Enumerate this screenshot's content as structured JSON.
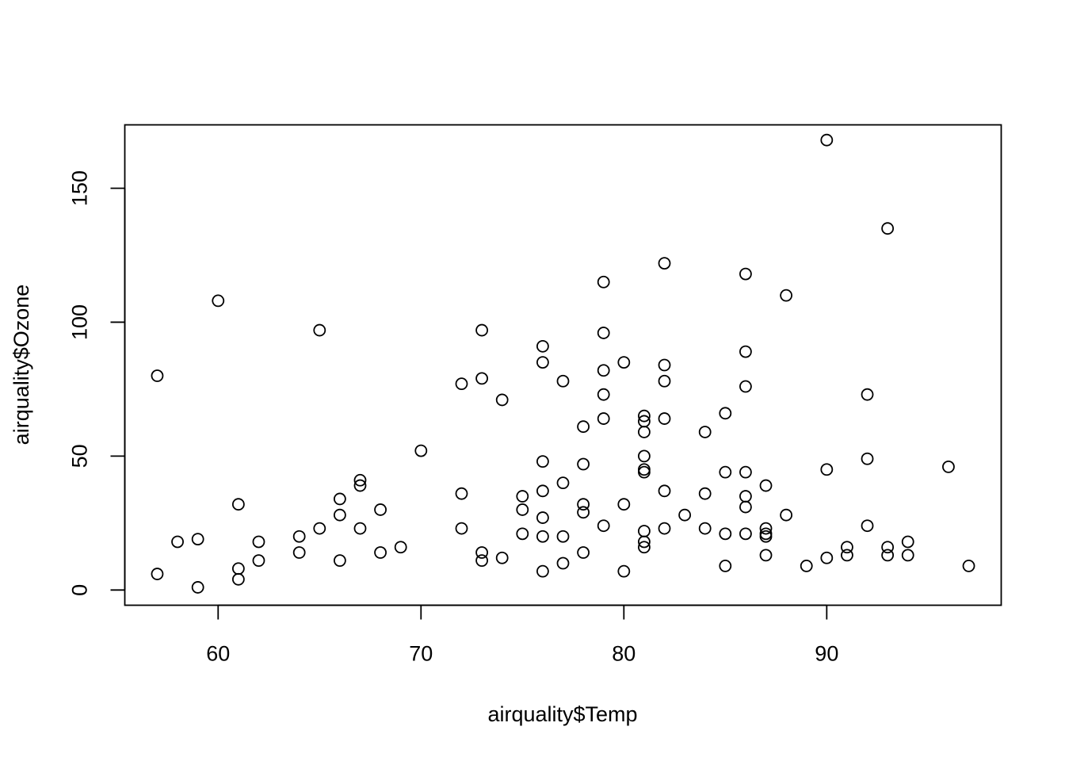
{
  "chart_data": {
    "type": "scatter",
    "title": "",
    "xlabel": "airquality$Temp",
    "ylabel": "airquality$Ozone",
    "xlim": [
      55.4,
      98.6
    ],
    "ylim": [
      -5.68,
      173.68
    ],
    "x_ticks": [
      60,
      70,
      80,
      90
    ],
    "y_ticks": [
      0,
      50,
      100,
      150
    ],
    "grid": false,
    "marker": "open-circle",
    "points": [
      [
        67,
        41
      ],
      [
        72,
        36
      ],
      [
        74,
        12
      ],
      [
        62,
        18
      ],
      [
        66,
        28
      ],
      [
        65,
        23
      ],
      [
        59,
        19
      ],
      [
        61,
        8
      ],
      [
        69,
        16
      ],
      [
        66,
        11
      ],
      [
        68,
        14
      ],
      [
        58,
        18
      ],
      [
        64,
        14
      ],
      [
        66,
        34
      ],
      [
        57,
        6
      ],
      [
        68,
        30
      ],
      [
        62,
        11
      ],
      [
        59,
        1
      ],
      [
        73,
        11
      ],
      [
        61,
        4
      ],
      [
        61,
        32
      ],
      [
        67,
        23
      ],
      [
        81,
        45
      ],
      [
        79,
        115
      ],
      [
        76,
        37
      ],
      [
        78,
        29
      ],
      [
        74,
        71
      ],
      [
        67,
        39
      ],
      [
        84,
        23
      ],
      [
        85,
        21
      ],
      [
        82,
        37
      ],
      [
        87,
        20
      ],
      [
        90,
        12
      ],
      [
        87,
        13
      ],
      [
        93,
        135
      ],
      [
        92,
        49
      ],
      [
        80,
        32
      ],
      [
        79,
        64
      ],
      [
        77,
        40
      ],
      [
        72,
        77
      ],
      [
        65,
        97
      ],
      [
        73,
        97
      ],
      [
        76,
        85
      ],
      [
        77,
        10
      ],
      [
        76,
        27
      ],
      [
        76,
        7
      ],
      [
        76,
        48
      ],
      [
        75,
        35
      ],
      [
        78,
        61
      ],
      [
        73,
        79
      ],
      [
        81,
        63
      ],
      [
        91,
        16
      ],
      [
        57,
        80
      ],
      [
        60,
        108
      ],
      [
        64,
        20
      ],
      [
        70,
        52
      ],
      [
        79,
        82
      ],
      [
        81,
        50
      ],
      [
        82,
        64
      ],
      [
        84,
        59
      ],
      [
        87,
        39
      ],
      [
        85,
        9
      ],
      [
        81,
        16
      ],
      [
        82,
        78
      ],
      [
        86,
        35
      ],
      [
        85,
        66
      ],
      [
        82,
        122
      ],
      [
        86,
        89
      ],
      [
        88,
        110
      ],
      [
        86,
        44
      ],
      [
        83,
        28
      ],
      [
        81,
        65
      ],
      [
        81,
        22
      ],
      [
        81,
        59
      ],
      [
        82,
        23
      ],
      [
        86,
        31
      ],
      [
        85,
        44
      ],
      [
        87,
        21
      ],
      [
        89,
        9
      ],
      [
        90,
        45
      ],
      [
        90,
        168
      ],
      [
        92,
        73
      ],
      [
        86,
        76
      ],
      [
        86,
        118
      ],
      [
        82,
        84
      ],
      [
        80,
        85
      ],
      [
        79,
        96
      ],
      [
        77,
        78
      ],
      [
        79,
        73
      ],
      [
        76,
        91
      ],
      [
        78,
        47
      ],
      [
        78,
        32
      ],
      [
        77,
        20
      ],
      [
        72,
        23
      ],
      [
        75,
        21
      ],
      [
        79,
        24
      ],
      [
        81,
        44
      ],
      [
        86,
        21
      ],
      [
        88,
        28
      ],
      [
        97,
        9
      ],
      [
        94,
        13
      ],
      [
        96,
        46
      ],
      [
        94,
        18
      ],
      [
        91,
        13
      ],
      [
        92,
        24
      ],
      [
        93,
        16
      ],
      [
        93,
        13
      ],
      [
        87,
        23
      ],
      [
        84,
        36
      ],
      [
        80,
        7
      ],
      [
        78,
        14
      ],
      [
        75,
        30
      ],
      [
        73,
        14
      ],
      [
        81,
        18
      ],
      [
        76,
        20
      ]
    ]
  }
}
